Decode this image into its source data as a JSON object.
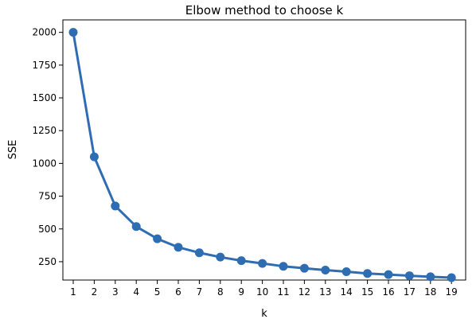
{
  "chart_data": {
    "type": "line",
    "title": "Elbow method to choose k",
    "xlabel": "k",
    "ylabel": "SSE",
    "x": [
      "1",
      "2",
      "3",
      "4",
      "5",
      "6",
      "7",
      "8",
      "9",
      "10",
      "11",
      "12",
      "13",
      "14",
      "15",
      "16",
      "17",
      "18",
      "19"
    ],
    "values": [
      2000,
      1050,
      675,
      518,
      425,
      360,
      318,
      285,
      258,
      237,
      215,
      200,
      186,
      174,
      160,
      152,
      143,
      135,
      128
    ],
    "yticks": [
      "250",
      "500",
      "750",
      "1000",
      "1250",
      "1500",
      "1750",
      "2000"
    ],
    "ylim": [
      110,
      2095
    ],
    "grid": false,
    "color": "#2f6db3"
  }
}
